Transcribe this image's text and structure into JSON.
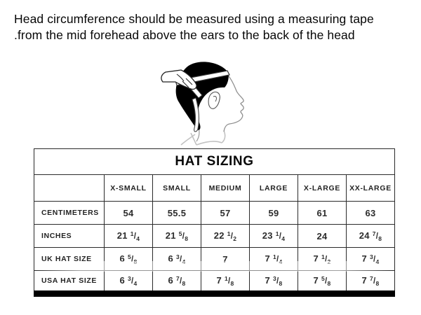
{
  "colors": {
    "text": "#070707",
    "table_border": "#2a2a2a",
    "bottom_bar": "#000000",
    "hair_fill": "#000000",
    "outline_gray": "#8f8f8f"
  },
  "instructions": {
    "line1": "Head circumference should be measured using a measuring tape",
    "line2": ".from the mid forehead above the ears to the back of the head"
  },
  "illustration": {
    "label": "Side profile of a head with a hand holding a measuring tape wrapped from the mid forehead above the ear to the back of the head"
  },
  "table": {
    "title": "HAT SIZING",
    "corner_label": "",
    "columns": [
      "X-SMALL",
      "SMALL",
      "MEDIUM",
      "LARGE",
      "X-LARGE",
      "XX-LARGE"
    ],
    "rows": [
      {
        "label": "CENTIMETERS",
        "values": [
          "54",
          "55.5",
          "57",
          "59",
          "61",
          "63"
        ]
      },
      {
        "label": "INCHES",
        "values": [
          "21 1/4",
          "21 5/8",
          "22 1/2",
          "23 1/4",
          "24",
          "24 7/8"
        ]
      },
      {
        "label": "UK HAT SIZE",
        "values": [
          "6 5/8",
          "6 3/4",
          "7",
          "7 1/4",
          "7 1/2",
          "7 3/4"
        ]
      },
      {
        "label": "USA HAT SIZE",
        "values": [
          "6 3/4",
          "6 7/8",
          "7 1/8",
          "7 3/8",
          "7 5/8",
          "7 7/8"
        ]
      }
    ]
  }
}
